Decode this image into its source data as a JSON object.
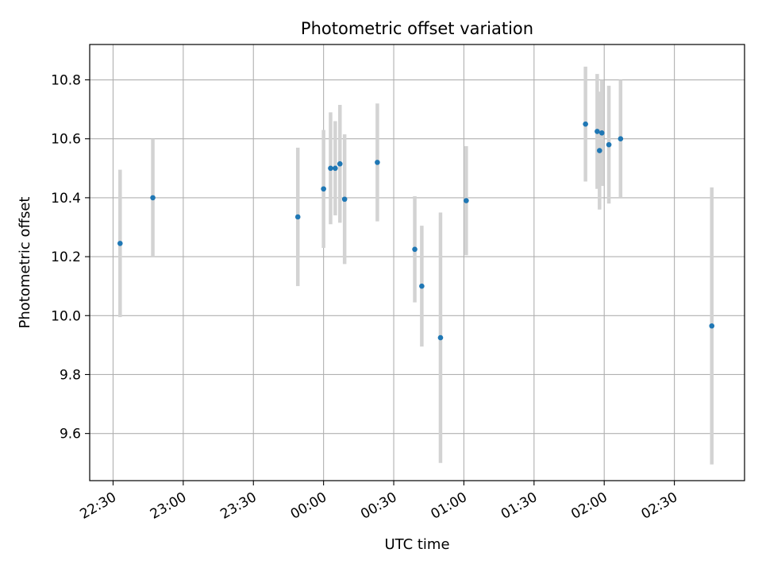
{
  "chart_data": {
    "type": "scatter",
    "title": "Photometric offset variation",
    "xlabel": "UTC time",
    "ylabel": "Photometric offset",
    "grid": true,
    "x_ticks": [
      "22:30",
      "23:00",
      "23:30",
      "00:00",
      "00:30",
      "01:00",
      "01:30",
      "02:00",
      "02:30"
    ],
    "y_ticks": [
      "9.6",
      "9.8",
      "10.0",
      "10.2",
      "10.4",
      "10.6",
      "10.8"
    ],
    "xlim": [
      "22:20",
      "03:00"
    ],
    "ylim": [
      9.44,
      10.92
    ],
    "colors": {
      "point": "#1f77b4",
      "errorbar": "#d3d3d3",
      "grid": "#b0b0b0"
    },
    "points": [
      {
        "x": "22:33",
        "y": 10.245,
        "err": 0.25
      },
      {
        "x": "22:47",
        "y": 10.4,
        "err": 0.2
      },
      {
        "x": "23:49",
        "y": 10.335,
        "err": 0.235
      },
      {
        "x": "00:00",
        "y": 10.43,
        "err": 0.2
      },
      {
        "x": "00:03",
        "y": 10.5,
        "err": 0.19
      },
      {
        "x": "00:05",
        "y": 10.5,
        "err": 0.16
      },
      {
        "x": "00:07",
        "y": 10.515,
        "err": 0.2
      },
      {
        "x": "00:09",
        "y": 10.395,
        "err": 0.22
      },
      {
        "x": "00:23",
        "y": 10.52,
        "err": 0.2
      },
      {
        "x": "00:39",
        "y": 10.225,
        "err": 0.18
      },
      {
        "x": "00:42",
        "y": 10.1,
        "err": 0.205
      },
      {
        "x": "00:50",
        "y": 9.925,
        "err": 0.425
      },
      {
        "x": "01:01",
        "y": 10.39,
        "err": 0.185
      },
      {
        "x": "01:52",
        "y": 10.65,
        "err": 0.195
      },
      {
        "x": "01:57",
        "y": 10.625,
        "err": 0.195
      },
      {
        "x": "01:58",
        "y": 10.56,
        "err": 0.2
      },
      {
        "x": "01:59",
        "y": 10.62,
        "err": 0.18
      },
      {
        "x": "02:02",
        "y": 10.58,
        "err": 0.2
      },
      {
        "x": "02:07",
        "y": 10.6,
        "err": 0.2
      },
      {
        "x": "02:46",
        "y": 9.965,
        "err": 0.47
      }
    ]
  }
}
